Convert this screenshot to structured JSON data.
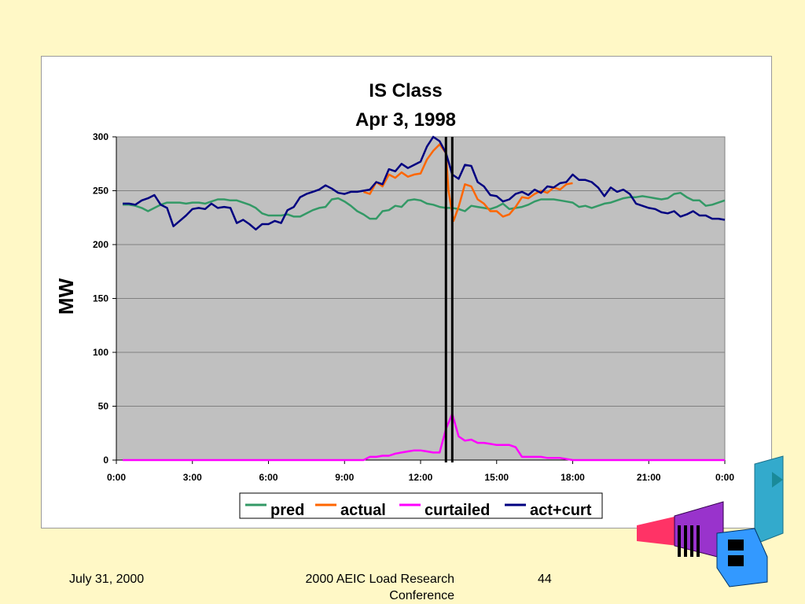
{
  "footer": {
    "date": "July 31, 2000",
    "conference": "2000 AEIC Load Research Conference",
    "page": "44"
  },
  "colors": {
    "page_background": "#fff8c6",
    "plot_background": "#c0c0c0",
    "pred": "#339966",
    "actual": "#ff6600",
    "curtailed": "#ff00ff",
    "act_curt": "#000080",
    "event_markers": "#000000"
  },
  "chart_data": {
    "type": "line",
    "title": "IS Class",
    "subtitle": "Apr 3, 1998",
    "xlabel": "",
    "ylabel": "MW",
    "xlim": [
      0,
      24
    ],
    "ylim": [
      0,
      300
    ],
    "yticks": [
      0,
      50,
      100,
      150,
      200,
      250,
      300
    ],
    "xticks": [
      0,
      3,
      6,
      9,
      12,
      15,
      18,
      21,
      24
    ],
    "xtick_labels": [
      "0:00",
      "3:00",
      "6:00",
      "9:00",
      "12:00",
      "15:00",
      "18:00",
      "21:00",
      "0:00"
    ],
    "grid": "horizontal",
    "legend_position": "bottom",
    "event_markers": [
      13.0,
      13.25
    ],
    "series": [
      {
        "name": "pred",
        "points": [
          [
            0.25,
            237
          ],
          [
            0.5,
            237
          ],
          [
            0.75,
            236
          ],
          [
            1.0,
            234
          ],
          [
            1.25,
            231
          ],
          [
            1.5,
            234
          ],
          [
            1.75,
            237
          ],
          [
            2.0,
            239
          ],
          [
            2.25,
            239
          ],
          [
            2.5,
            239
          ],
          [
            2.75,
            238
          ],
          [
            3.0,
            239
          ],
          [
            3.25,
            239
          ],
          [
            3.5,
            238
          ],
          [
            3.75,
            240
          ],
          [
            4.0,
            242
          ],
          [
            4.25,
            242
          ],
          [
            4.5,
            241
          ],
          [
            4.75,
            241
          ],
          [
            5.0,
            239
          ],
          [
            5.25,
            237
          ],
          [
            5.5,
            234
          ],
          [
            5.75,
            229
          ],
          [
            6.0,
            227
          ],
          [
            6.25,
            227
          ],
          [
            6.5,
            227
          ],
          [
            6.75,
            228
          ],
          [
            7.0,
            226
          ],
          [
            7.25,
            226
          ],
          [
            7.5,
            229
          ],
          [
            7.75,
            232
          ],
          [
            8.0,
            234
          ],
          [
            8.25,
            235
          ],
          [
            8.5,
            242
          ],
          [
            8.75,
            243
          ],
          [
            9.0,
            240
          ],
          [
            9.25,
            236
          ],
          [
            9.5,
            231
          ],
          [
            9.75,
            228
          ],
          [
            10.0,
            224
          ],
          [
            10.25,
            224
          ],
          [
            10.5,
            231
          ],
          [
            10.75,
            232
          ],
          [
            11.0,
            236
          ],
          [
            11.25,
            235
          ],
          [
            11.5,
            241
          ],
          [
            11.75,
            242
          ],
          [
            12.0,
            241
          ],
          [
            12.25,
            238
          ],
          [
            12.5,
            237
          ],
          [
            12.75,
            235
          ],
          [
            13.0,
            234
          ],
          [
            13.25,
            234
          ],
          [
            13.5,
            233
          ],
          [
            13.75,
            231
          ],
          [
            14.0,
            236
          ],
          [
            14.25,
            235
          ],
          [
            14.5,
            234
          ],
          [
            14.75,
            233
          ],
          [
            15.0,
            235
          ],
          [
            15.25,
            238
          ],
          [
            15.5,
            233
          ],
          [
            15.75,
            234
          ],
          [
            16.0,
            235
          ],
          [
            16.25,
            237
          ],
          [
            16.5,
            240
          ],
          [
            16.75,
            242
          ],
          [
            17.0,
            242
          ],
          [
            17.25,
            242
          ],
          [
            17.5,
            241
          ],
          [
            17.75,
            240
          ],
          [
            18.0,
            239
          ],
          [
            18.25,
            235
          ],
          [
            18.5,
            236
          ],
          [
            18.75,
            234
          ],
          [
            19.0,
            236
          ],
          [
            19.25,
            238
          ],
          [
            19.5,
            239
          ],
          [
            19.75,
            241
          ],
          [
            20.0,
            243
          ],
          [
            20.25,
            244
          ],
          [
            20.5,
            244
          ],
          [
            20.75,
            245
          ],
          [
            21.0,
            244
          ],
          [
            21.25,
            243
          ],
          [
            21.5,
            242
          ],
          [
            21.75,
            243
          ],
          [
            22.0,
            247
          ],
          [
            22.25,
            248
          ],
          [
            22.5,
            244
          ],
          [
            22.75,
            241
          ],
          [
            23.0,
            241
          ],
          [
            23.25,
            236
          ],
          [
            23.5,
            237
          ],
          [
            23.75,
            239
          ],
          [
            24.0,
            241
          ]
        ]
      },
      {
        "name": "actual",
        "points": [
          [
            9.75,
            249
          ],
          [
            10.0,
            247
          ],
          [
            10.25,
            258
          ],
          [
            10.5,
            254
          ],
          [
            10.75,
            265
          ],
          [
            11.0,
            262
          ],
          [
            11.25,
            267
          ],
          [
            11.5,
            263
          ],
          [
            11.75,
            265
          ],
          [
            12.0,
            266
          ],
          [
            12.25,
            279
          ],
          [
            12.5,
            287
          ],
          [
            12.75,
            293
          ],
          [
            13.0,
            285
          ],
          [
            13.1,
            250
          ],
          [
            13.3,
            222
          ],
          [
            13.5,
            235
          ],
          [
            13.75,
            256
          ],
          [
            14.0,
            254
          ],
          [
            14.25,
            242
          ],
          [
            14.5,
            238
          ],
          [
            14.75,
            231
          ],
          [
            15.0,
            231
          ],
          [
            15.25,
            226
          ],
          [
            15.5,
            228
          ],
          [
            15.75,
            235
          ],
          [
            16.0,
            244
          ],
          [
            16.25,
            243
          ],
          [
            16.5,
            247
          ],
          [
            16.75,
            250
          ],
          [
            17.0,
            248
          ],
          [
            17.25,
            253
          ],
          [
            17.5,
            251
          ],
          [
            17.75,
            256
          ],
          [
            18.0,
            257
          ]
        ]
      },
      {
        "name": "curtailed",
        "points": [
          [
            0.25,
            0
          ],
          [
            9.75,
            0
          ],
          [
            10.0,
            3
          ],
          [
            10.25,
            3
          ],
          [
            10.5,
            4
          ],
          [
            10.75,
            4
          ],
          [
            11.0,
            6
          ],
          [
            11.25,
            7
          ],
          [
            11.5,
            8
          ],
          [
            11.75,
            9
          ],
          [
            12.0,
            9
          ],
          [
            12.25,
            8
          ],
          [
            12.5,
            7
          ],
          [
            12.75,
            7
          ],
          [
            13.0,
            29
          ],
          [
            13.25,
            43
          ],
          [
            13.5,
            22
          ],
          [
            13.75,
            18
          ],
          [
            14.0,
            19
          ],
          [
            14.25,
            16
          ],
          [
            14.5,
            16
          ],
          [
            14.75,
            15
          ],
          [
            15.0,
            14
          ],
          [
            15.25,
            14
          ],
          [
            15.5,
            14
          ],
          [
            15.75,
            12
          ],
          [
            16.0,
            3
          ],
          [
            16.25,
            3
          ],
          [
            16.5,
            3
          ],
          [
            16.75,
            3
          ],
          [
            17.0,
            2
          ],
          [
            17.25,
            2
          ],
          [
            17.5,
            2
          ],
          [
            17.75,
            1
          ],
          [
            18.0,
            0
          ],
          [
            18.25,
            0
          ],
          [
            24.0,
            0
          ]
        ]
      },
      {
        "name": "act+curt",
        "points": [
          [
            0.25,
            238
          ],
          [
            0.5,
            238
          ],
          [
            0.75,
            237
          ],
          [
            1.0,
            241
          ],
          [
            1.25,
            243
          ],
          [
            1.5,
            246
          ],
          [
            1.75,
            237
          ],
          [
            2.0,
            234
          ],
          [
            2.25,
            217
          ],
          [
            2.5,
            222
          ],
          [
            2.75,
            227
          ],
          [
            3.0,
            233
          ],
          [
            3.25,
            234
          ],
          [
            3.5,
            233
          ],
          [
            3.75,
            238
          ],
          [
            4.0,
            234
          ],
          [
            4.25,
            235
          ],
          [
            4.5,
            234
          ],
          [
            4.75,
            220
          ],
          [
            5.0,
            223
          ],
          [
            5.25,
            219
          ],
          [
            5.5,
            214
          ],
          [
            5.75,
            219
          ],
          [
            6.0,
            219
          ],
          [
            6.25,
            222
          ],
          [
            6.5,
            220
          ],
          [
            6.75,
            232
          ],
          [
            7.0,
            235
          ],
          [
            7.25,
            244
          ],
          [
            7.5,
            247
          ],
          [
            7.75,
            249
          ],
          [
            8.0,
            251
          ],
          [
            8.25,
            255
          ],
          [
            8.5,
            252
          ],
          [
            8.75,
            248
          ],
          [
            9.0,
            247
          ],
          [
            9.25,
            249
          ],
          [
            9.5,
            249
          ],
          [
            9.75,
            250
          ],
          [
            10.0,
            251
          ],
          [
            10.25,
            258
          ],
          [
            10.5,
            256
          ],
          [
            10.75,
            270
          ],
          [
            11.0,
            268
          ],
          [
            11.25,
            275
          ],
          [
            11.5,
            271
          ],
          [
            11.75,
            274
          ],
          [
            12.0,
            277
          ],
          [
            12.25,
            291
          ],
          [
            12.5,
            300
          ],
          [
            12.75,
            296
          ],
          [
            13.0,
            285
          ],
          [
            13.25,
            265
          ],
          [
            13.5,
            261
          ],
          [
            13.75,
            274
          ],
          [
            14.0,
            273
          ],
          [
            14.25,
            258
          ],
          [
            14.5,
            254
          ],
          [
            14.75,
            246
          ],
          [
            15.0,
            245
          ],
          [
            15.25,
            240
          ],
          [
            15.5,
            242
          ],
          [
            15.75,
            247
          ],
          [
            16.0,
            249
          ],
          [
            16.25,
            246
          ],
          [
            16.5,
            251
          ],
          [
            16.75,
            248
          ],
          [
            17.0,
            254
          ],
          [
            17.25,
            253
          ],
          [
            17.5,
            257
          ],
          [
            17.75,
            258
          ],
          [
            18.0,
            265
          ],
          [
            18.25,
            260
          ],
          [
            18.5,
            260
          ],
          [
            18.75,
            258
          ],
          [
            19.0,
            253
          ],
          [
            19.25,
            245
          ],
          [
            19.5,
            253
          ],
          [
            19.75,
            249
          ],
          [
            20.0,
            251
          ],
          [
            20.25,
            247
          ],
          [
            20.5,
            238
          ],
          [
            20.75,
            236
          ],
          [
            21.0,
            234
          ],
          [
            21.25,
            233
          ],
          [
            21.5,
            230
          ],
          [
            21.75,
            229
          ],
          [
            22.0,
            231
          ],
          [
            22.25,
            226
          ],
          [
            22.5,
            228
          ],
          [
            22.75,
            231
          ],
          [
            23.0,
            227
          ],
          [
            23.25,
            227
          ],
          [
            23.5,
            224
          ],
          [
            23.75,
            224
          ],
          [
            24.0,
            223
          ]
        ]
      }
    ]
  }
}
